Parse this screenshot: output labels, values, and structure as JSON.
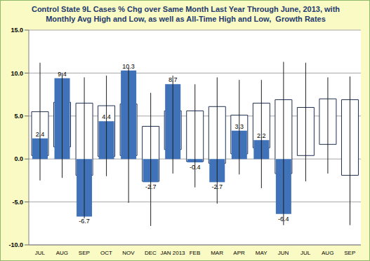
{
  "chart_data": {
    "type": "bar",
    "title": "Control State 9L Cases % Chg over Same Month Last Year Through June, 2013, with Monthly Avg High and Low, as well as All-Time High and Low,  Growth Rates",
    "categories": [
      "JUL",
      "AUG",
      "SEP",
      "OCT",
      "NOV",
      "DEC",
      "JAN 2013",
      "FEB",
      "MAR",
      "APR",
      "MAY",
      "JUN",
      "JUL",
      "AUG",
      "SEP"
    ],
    "values": [
      2.4,
      9.4,
      -6.7,
      4.4,
      10.3,
      -2.7,
      8.7,
      -0.4,
      -2.7,
      3.3,
      2.2,
      -6.4,
      null,
      null,
      null
    ],
    "all_time_high": [
      11.2,
      10.0,
      9.5,
      9.7,
      10.6,
      7.7,
      9.7,
      8.7,
      9.5,
      9.2,
      9.2,
      11.3,
      11.2,
      9.5,
      9.6
    ],
    "all_time_low": [
      -2.5,
      -2.2,
      -6.9,
      -2.0,
      -5.1,
      -7.8,
      -1.7,
      -3.3,
      -5.2,
      -1.8,
      -3.4,
      -7.7,
      -2.6,
      -1.7,
      -7.7
    ],
    "avg_high": [
      5.5,
      6.6,
      6.5,
      6.2,
      6.4,
      3.8,
      5.6,
      5.6,
      6.1,
      5.1,
      6.5,
      6.9,
      6.0,
      7.0,
      6.9
    ],
    "avg_low": [
      0.4,
      1.4,
      -1.9,
      0.3,
      0.4,
      -2.6,
      1.1,
      -0.3,
      -0.5,
      0.6,
      1.3,
      -1.7,
      0.4,
      1.7,
      -1.9
    ],
    "color": "#3f72b8",
    "ylim": [
      -10,
      15
    ],
    "yticks": [
      {
        "value": -10,
        "label": "-10.0"
      },
      {
        "value": -5,
        "label": "-5.0"
      },
      {
        "value": 0,
        "label": "0.0"
      },
      {
        "value": 5,
        "label": "5.0"
      },
      {
        "value": 10,
        "label": "10.0"
      },
      {
        "value": 15,
        "label": "15.0"
      }
    ],
    "grid": true,
    "data_labels": true
  }
}
